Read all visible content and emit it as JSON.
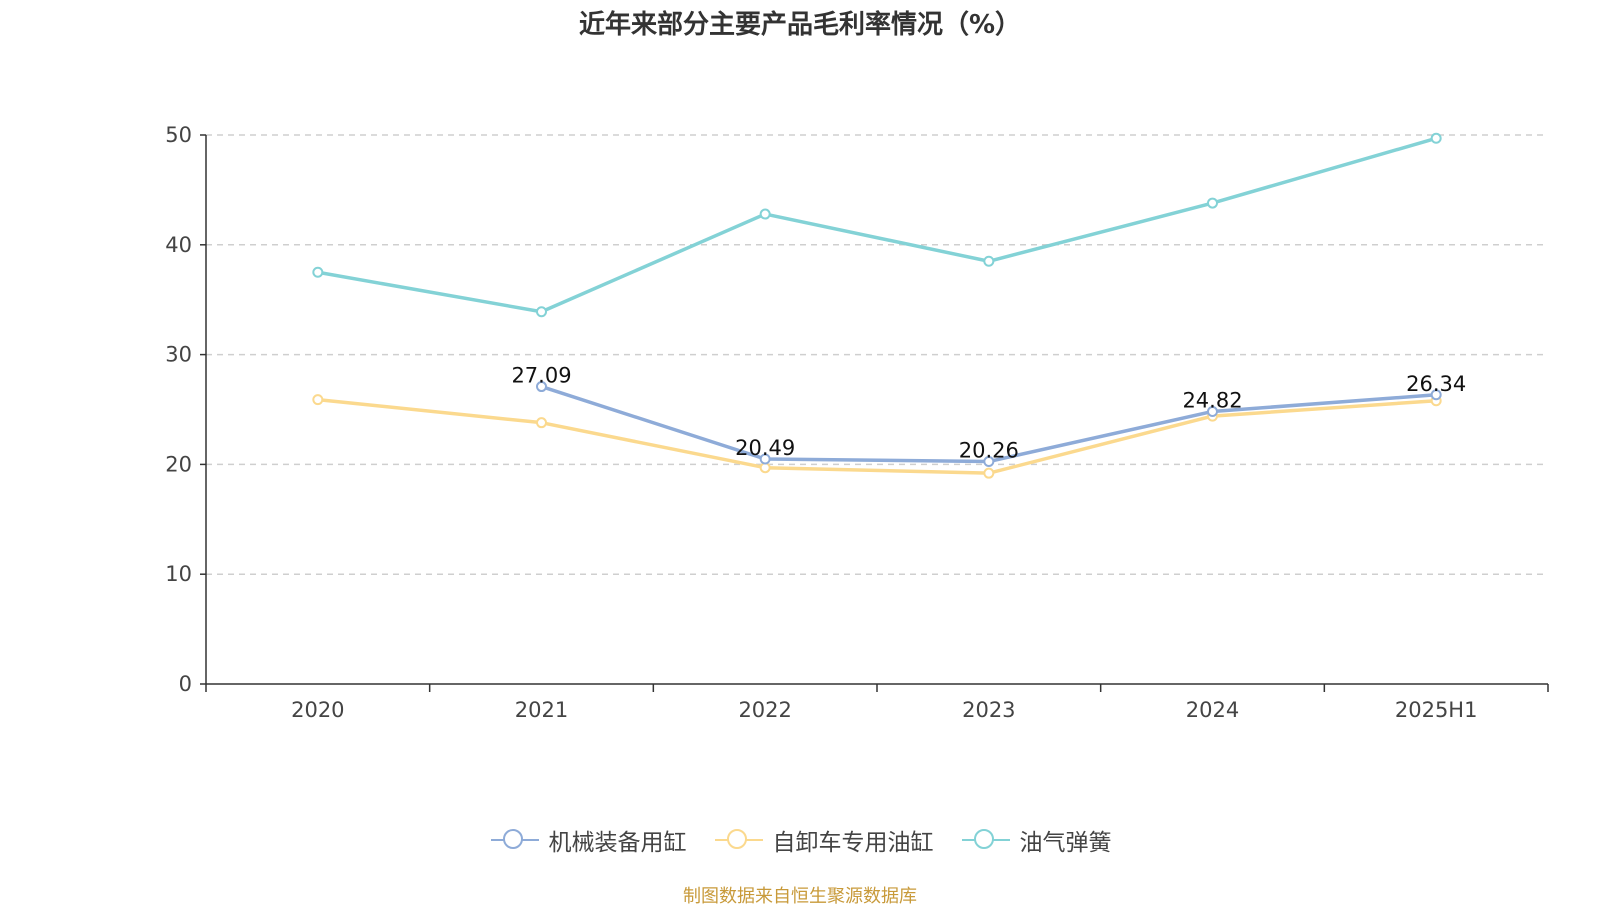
{
  "chart_data": {
    "type": "line",
    "title": "近年来部分主要产品毛利率情况（%）",
    "categories": [
      "2020",
      "2021",
      "2022",
      "2023",
      "2024",
      "2025H1"
    ],
    "ylim": [
      0,
      50
    ],
    "yticks": [
      0,
      10,
      20,
      30,
      40,
      50
    ],
    "grid": true,
    "legend_position": "bottom",
    "series": [
      {
        "name": "机械装备用缸",
        "color": "#8eabd8",
        "values": [
          null,
          27.09,
          20.49,
          20.26,
          24.82,
          26.34
        ],
        "labels": [
          "",
          "27.09",
          "20.49",
          "20.26",
          "24.82",
          "26.34"
        ]
      },
      {
        "name": "自卸车专用油缸",
        "color": "#fbd98e",
        "values": [
          25.9,
          23.8,
          19.7,
          19.2,
          24.4,
          25.8
        ]
      },
      {
        "name": "油气弹簧",
        "color": "#83d2d6",
        "values": [
          37.5,
          33.9,
          42.8,
          38.5,
          43.8,
          49.7
        ]
      }
    ]
  },
  "source_note": "制图数据来自恒生聚源数据库"
}
